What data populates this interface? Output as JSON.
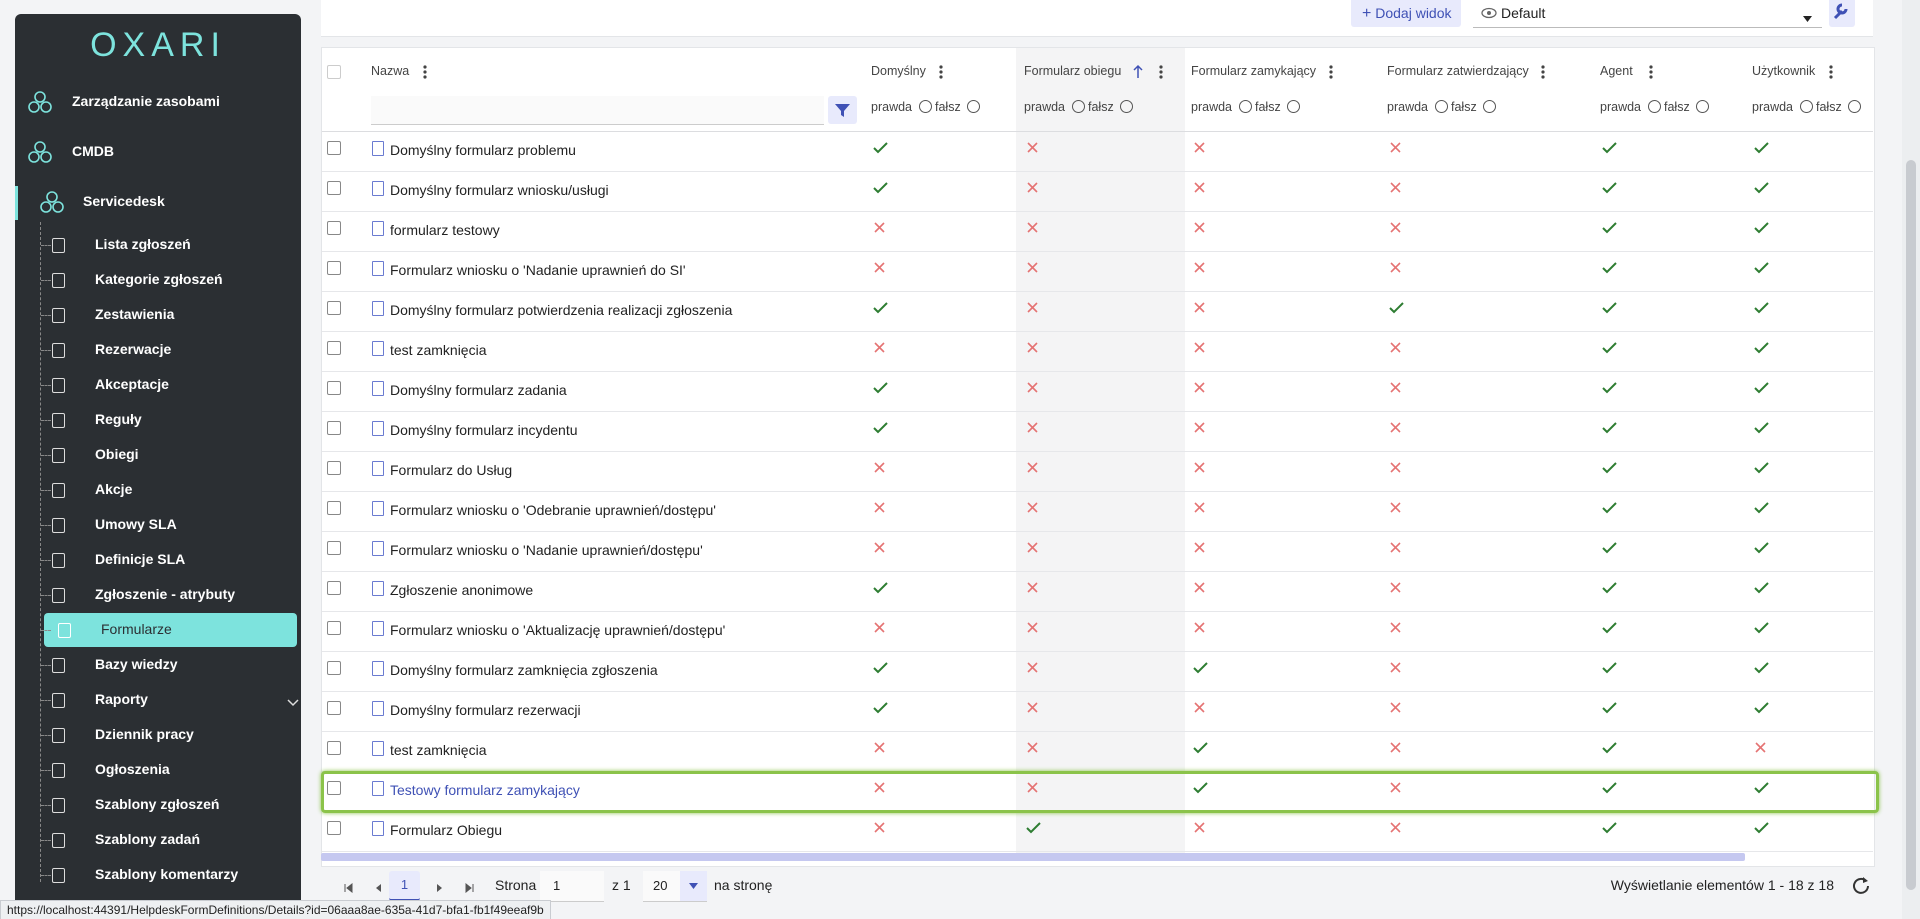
{
  "sidebar": {
    "logo": "OXARI",
    "items": [
      "Zarządzanie zasobami",
      "CMDB",
      "Servicedesk"
    ],
    "subitems": [
      "Lista zgłoszeń",
      "Kategorie zgłoszeń",
      "Zestawienia",
      "Rezerwacje",
      "Akceptacje",
      "Reguły",
      "Obiegi",
      "Akcje",
      "Umowy SLA",
      "Definicje SLA",
      "Zgłoszenie - atrybuty",
      "Formularze",
      "Bazy wiedzy",
      "Raporty",
      "Dziennik pracy",
      "Ogłoszenia",
      "Szablony zgłoszeń",
      "Szablony zadań",
      "Szablony komentarzy"
    ],
    "active": 11
  },
  "toolbar": {
    "add_view": "Dodaj widok",
    "view_name": "Default"
  },
  "table": {
    "columns": [
      "Nazwa",
      "Domyślny",
      "Formularz obiegu",
      "Formularz zamykający",
      "Formularz zatwierdzający",
      "Agent",
      "Użytkownik"
    ],
    "filter_true": "prawda",
    "filter_false": "fałsz",
    "highlighted": 16,
    "rows": [
      {
        "name": "Domyślny formularz problemu",
        "flags": [
          true,
          false,
          false,
          false,
          true,
          true
        ]
      },
      {
        "name": "Domyślny formularz wniosku/usługi",
        "flags": [
          true,
          false,
          false,
          false,
          true,
          true
        ]
      },
      {
        "name": "formularz testowy",
        "flags": [
          false,
          false,
          false,
          false,
          true,
          true
        ]
      },
      {
        "name": "Formularz wniosku o 'Nadanie uprawnień do SI'",
        "flags": [
          false,
          false,
          false,
          false,
          true,
          true
        ]
      },
      {
        "name": "Domyślny formularz potwierdzenia realizacji zgłoszenia",
        "flags": [
          true,
          false,
          false,
          true,
          true,
          true
        ]
      },
      {
        "name": "test zamknięcia",
        "flags": [
          false,
          false,
          false,
          false,
          true,
          true
        ]
      },
      {
        "name": "Domyślny formularz zadania",
        "flags": [
          true,
          false,
          false,
          false,
          true,
          true
        ]
      },
      {
        "name": "Domyślny formularz incydentu",
        "flags": [
          true,
          false,
          false,
          false,
          true,
          true
        ]
      },
      {
        "name": "Formularz do Usług",
        "flags": [
          false,
          false,
          false,
          false,
          true,
          true
        ]
      },
      {
        "name": "Formularz wniosku o 'Odebranie uprawnień/dostępu'",
        "flags": [
          false,
          false,
          false,
          false,
          true,
          true
        ]
      },
      {
        "name": "Formularz wniosku o 'Nadanie uprawnień/dostępu'",
        "flags": [
          false,
          false,
          false,
          false,
          true,
          true
        ]
      },
      {
        "name": "Zgłoszenie anonimowe",
        "flags": [
          true,
          false,
          false,
          false,
          true,
          true
        ]
      },
      {
        "name": "Formularz wniosku o 'Aktualizację uprawnień/dostępu'",
        "flags": [
          false,
          false,
          false,
          false,
          true,
          true
        ]
      },
      {
        "name": "Domyślny formularz zamknięcia zgłoszenia",
        "flags": [
          true,
          false,
          true,
          false,
          true,
          true
        ]
      },
      {
        "name": "Domyślny formularz rezerwacji",
        "flags": [
          true,
          false,
          false,
          false,
          true,
          true
        ]
      },
      {
        "name": "test zamknięcia",
        "flags": [
          false,
          false,
          true,
          false,
          true,
          false
        ]
      },
      {
        "name": "Testowy formularz zamykający",
        "flags": [
          false,
          false,
          true,
          false,
          true,
          true
        ]
      },
      {
        "name": "Formularz Obiegu",
        "flags": [
          false,
          true,
          false,
          false,
          true,
          true
        ]
      }
    ]
  },
  "pagination": {
    "current": "1",
    "page_label": "Strona",
    "page": "1",
    "of": "z 1",
    "per_page": "20",
    "per_page_label": "na stronę",
    "summary": "Wyświetlanie elementów 1 - 18 z 18"
  },
  "status_url": "https://localhost:44391/HelpdeskFormDefinitions/Details?id=06aaa8ae-635a-41d7-bfa1-fb1f49eeaf9b"
}
